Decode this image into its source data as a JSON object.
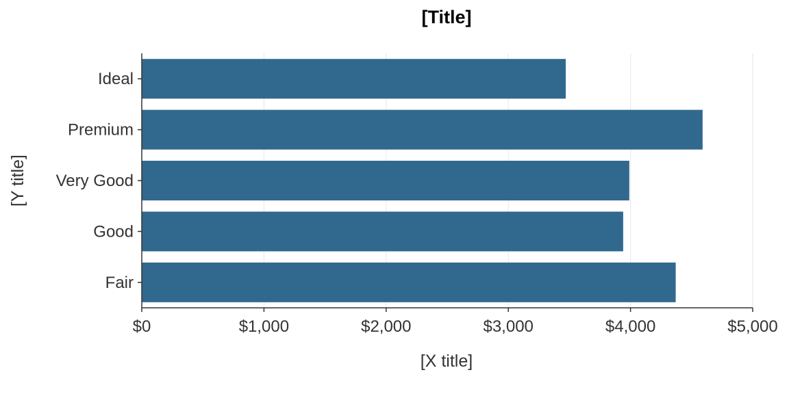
{
  "chart_data": {
    "type": "bar",
    "orientation": "horizontal",
    "title": "[Title]",
    "xlabel": "[X title]",
    "ylabel": "[Y title]",
    "categories": [
      "Ideal",
      "Premium",
      "Very Good",
      "Good",
      "Fair"
    ],
    "values": [
      3470,
      4590,
      3990,
      3940,
      4370
    ],
    "xlim": [
      0,
      5000
    ],
    "x_ticks": [
      0,
      1000,
      2000,
      3000,
      4000,
      5000
    ],
    "x_tick_labels": [
      "$0",
      "$1,000",
      "$2,000",
      "$3,000",
      "$4,000",
      "$5,000"
    ],
    "grid": "vertical",
    "bar_color": "#31698e",
    "legend": "none"
  }
}
